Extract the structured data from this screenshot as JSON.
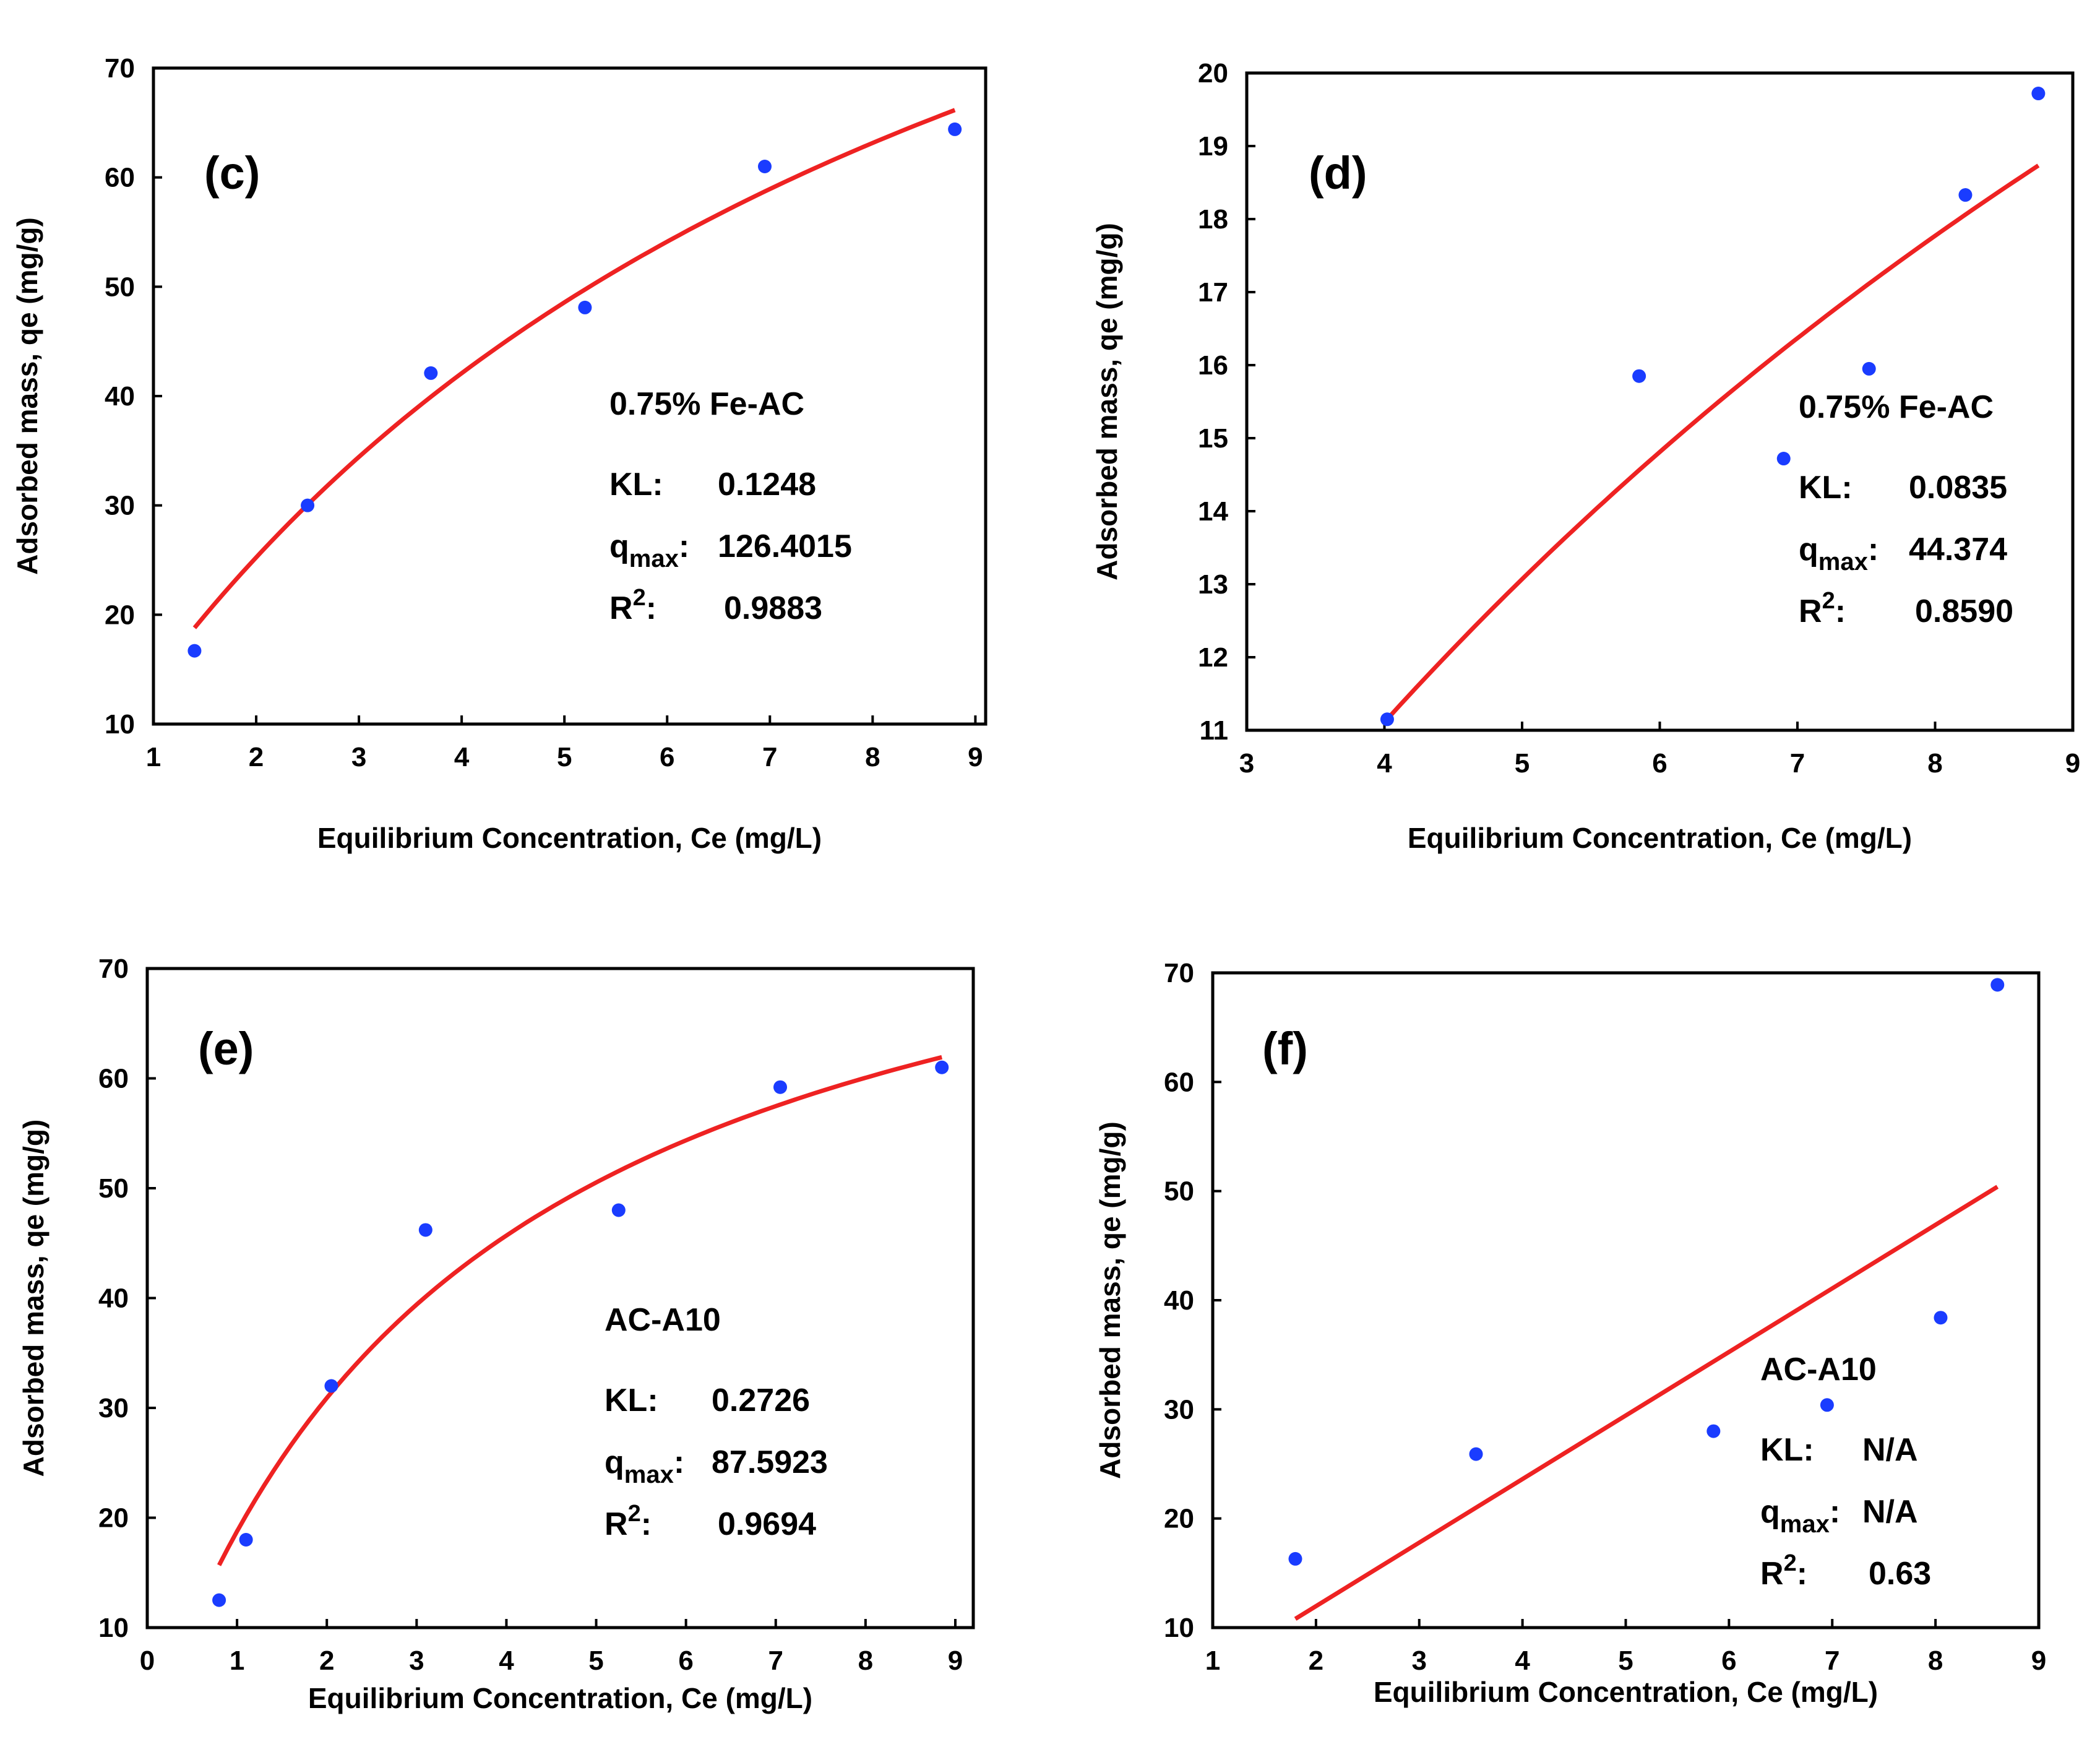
{
  "chart_data": [
    {
      "type": "scatter",
      "panel": "(c)",
      "xlabel": "Equilibrium Concentration, Ce (mg/L)",
      "ylabel": "Adsorbed mass, qe (mg/g)",
      "xlim": [
        1,
        9.1
      ],
      "ylim": [
        10,
        70
      ],
      "xticks": [
        1,
        2,
        3,
        4,
        5,
        6,
        7,
        8,
        9
      ],
      "yticks": [
        10,
        20,
        30,
        40,
        50,
        60,
        70
      ],
      "series": [
        {
          "name": "data",
          "x": [
            1.4,
            2.5,
            3.7,
            5.2,
            6.95,
            8.8
          ],
          "y": [
            16.7,
            30.0,
            42.1,
            48.1,
            61.0,
            64.4
          ]
        },
        {
          "name": "Langmuir fit",
          "model": "langmuir",
          "KL": 0.1248,
          "qmax": 126.4015,
          "x_range": [
            1.4,
            8.8
          ]
        }
      ],
      "annotation": {
        "name": "0.75% Fe-AC",
        "kl_label": "KL:",
        "kl_value": "0.1248",
        "q_sym": "q",
        "q_sub": "max",
        "q_sep": ":",
        "q_value": "126.4015",
        "r_sym": "R",
        "r_sup": "2",
        "r_sep": ":",
        "r_value": "0.9883"
      }
    },
    {
      "type": "scatter",
      "panel": "(d)",
      "xlabel": "Equilibrium Concentration, Ce (mg/L)",
      "ylabel": "Adsorbed mass, qe (mg/g)",
      "xlim": [
        3,
        9
      ],
      "ylim": [
        11,
        20
      ],
      "xticks": [
        3,
        4,
        5,
        6,
        7,
        8,
        9
      ],
      "yticks": [
        11,
        12,
        13,
        14,
        15,
        16,
        17,
        18,
        19,
        20
      ],
      "series": [
        {
          "name": "data",
          "x": [
            4.02,
            5.85,
            6.9,
            7.52,
            8.22,
            8.75
          ],
          "y": [
            11.15,
            15.85,
            14.72,
            15.95,
            18.33,
            19.72
          ]
        },
        {
          "name": "Langmuir fit",
          "model": "langmuir",
          "KL": 0.0835,
          "qmax": 44.374,
          "x_range": [
            4.0,
            8.75
          ]
        }
      ],
      "annotation": {
        "name": "0.75% Fe-AC",
        "kl_label": "KL:",
        "kl_value": "0.0835",
        "q_sym": "q",
        "q_sub": "max",
        "q_sep": ":",
        "q_value": "44.374",
        "r_sym": "R",
        "r_sup": "2",
        "r_sep": ":",
        "r_value": "0.8590"
      }
    },
    {
      "type": "scatter",
      "panel": "(e)",
      "xlabel": "Equilibrium Concentration, Ce (mg/L)",
      "ylabel": "Adsorbed mass, qe (mg/g)",
      "xlim": [
        0,
        9.2
      ],
      "ylim": [
        10,
        70
      ],
      "xticks": [
        0,
        1,
        2,
        3,
        4,
        5,
        6,
        7,
        8,
        9
      ],
      "yticks": [
        10,
        20,
        30,
        40,
        50,
        60,
        70
      ],
      "series": [
        {
          "name": "data",
          "x": [
            0.8,
            1.1,
            2.05,
            3.1,
            5.25,
            7.05,
            8.85
          ],
          "y": [
            12.5,
            18.0,
            32.0,
            46.2,
            48.0,
            59.2,
            61.0
          ]
        },
        {
          "name": "Langmuir fit",
          "model": "langmuir",
          "KL": 0.2726,
          "qmax": 87.5923,
          "x_range": [
            0.8,
            8.85
          ]
        }
      ],
      "annotation": {
        "name": "AC-A10",
        "kl_label": "KL:",
        "kl_value": "0.2726",
        "q_sym": "q",
        "q_sub": "max",
        "q_sep": ":",
        "q_value": "87.5923",
        "r_sym": "R",
        "r_sup": "2",
        "r_sep": ":",
        "r_value": "0.9694"
      }
    },
    {
      "type": "scatter",
      "panel": "(f)",
      "xlabel": "Equilibrium Concentration, Ce (mg/L)",
      "ylabel": "Adsorbed mass, qe (mg/g)",
      "xlim": [
        1,
        9
      ],
      "ylim": [
        10,
        70
      ],
      "xticks": [
        1,
        2,
        3,
        4,
        5,
        6,
        7,
        8,
        9
      ],
      "yticks": [
        10,
        20,
        30,
        40,
        50,
        60,
        70
      ],
      "series": [
        {
          "name": "data",
          "x": [
            1.8,
            3.55,
            5.85,
            6.95,
            8.05,
            8.6
          ],
          "y": [
            16.3,
            25.9,
            28.0,
            30.4,
            38.4,
            68.9
          ]
        },
        {
          "name": "linear fit",
          "model": "line",
          "x_range": [
            1.8,
            8.6
          ],
          "y_range": [
            10.8,
            50.4
          ]
        }
      ],
      "annotation": {
        "name": "AC-A10",
        "kl_label": "KL:",
        "kl_value": "N/A",
        "q_sym": "q",
        "q_sub": "max",
        "q_sep": ":",
        "q_value": "N/A",
        "r_sym": "R",
        "r_sup": "2",
        "r_sep": ":",
        "r_value": "0.63"
      }
    }
  ]
}
